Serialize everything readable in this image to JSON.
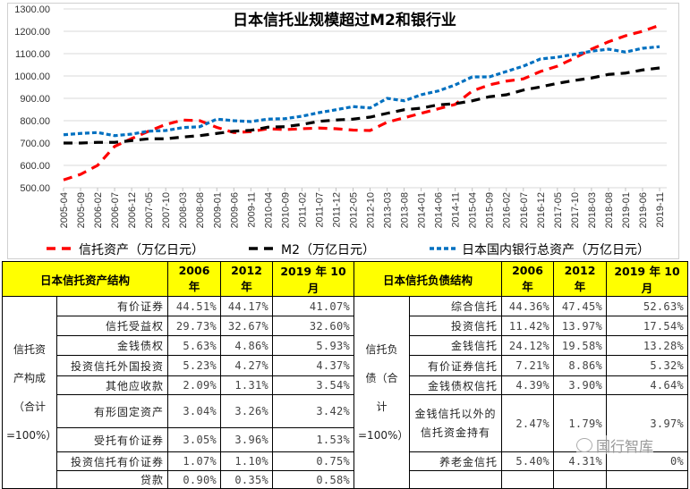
{
  "chart_data": {
    "type": "line",
    "title": "日本信托业规模超过M2和银行业",
    "xlabel": "",
    "ylabel": "",
    "ylim": [
      500,
      1300
    ],
    "yticks": [
      "500.00",
      "600.00",
      "700.00",
      "800.00",
      "900.00",
      "1000.00",
      "1100.00",
      "1200.00",
      "1300.00"
    ],
    "grid": true,
    "legend_position": "bottom",
    "x": [
      "2005-04",
      "2005-09",
      "2006-02",
      "2006-07",
      "2006-12",
      "2007-05",
      "2007-10",
      "2008-03",
      "2008-08",
      "2009-01",
      "2009-06",
      "2009-11",
      "2010-04",
      "2010-09",
      "2011-02",
      "2011-07",
      "2011-12",
      "2012-05",
      "2012-10",
      "2013-03",
      "2013-08",
      "2014-01",
      "2014-06",
      "2014-11",
      "2015-04",
      "2015-09",
      "2016-02",
      "2016-07",
      "2016-12",
      "2017-05",
      "2017-10",
      "2018-03",
      "2018-08",
      "2019-01",
      "2019-06",
      "2019-11"
    ],
    "series": [
      {
        "name": "信托资产（万亿日元）",
        "color": "#ff0000",
        "style": "dashed",
        "values": [
          535,
          560,
          600,
          685,
          720,
          753,
          783,
          803,
          800,
          770,
          747,
          751,
          764,
          760,
          764,
          767,
          764,
          758,
          756,
          793,
          813,
          833,
          853,
          873,
          933,
          960,
          977,
          987,
          1020,
          1044,
          1080,
          1120,
          1153,
          1180,
          1200,
          1227
        ]
      },
      {
        "name": "M2（万亿日元）",
        "color": "#000000",
        "style": "dashed",
        "values": [
          700,
          700,
          703,
          703,
          711,
          719,
          719,
          727,
          733,
          743,
          753,
          757,
          771,
          773,
          783,
          797,
          803,
          807,
          816,
          833,
          849,
          856,
          871,
          876,
          889,
          907,
          916,
          937,
          951,
          967,
          980,
          991,
          1007,
          1013,
          1027,
          1036
        ]
      },
      {
        "name": "日本国内银行总资产（万亿日元）",
        "color": "#0070c0",
        "style": "dotted",
        "values": [
          737,
          743,
          747,
          733,
          740,
          753,
          756,
          769,
          773,
          807,
          800,
          796,
          807,
          809,
          820,
          836,
          849,
          863,
          857,
          900,
          889,
          916,
          933,
          960,
          996,
          996,
          1020,
          1044,
          1076,
          1084,
          1097,
          1111,
          1120,
          1107,
          1124,
          1131
        ]
      }
    ]
  },
  "asset_table": {
    "headers": [
      "日本信托资产结构",
      "2006 年",
      "2012 年",
      "2019 年 10 月"
    ],
    "group_label": "信托资\n产构成\n（合计\n=100%）",
    "rows": [
      {
        "item": "有价证券",
        "v2006": "44.51%",
        "v2012": "44.17%",
        "v2019": "41.07%"
      },
      {
        "item": "信托受益权",
        "v2006": "29.73%",
        "v2012": "32.67%",
        "v2019": "32.60%"
      },
      {
        "item": "金钱债权",
        "v2006": "5.63%",
        "v2012": "4.86%",
        "v2019": "5.93%"
      },
      {
        "item": "投资信托外国投资",
        "v2006": "5.23%",
        "v2012": "4.27%",
        "v2019": "4.37%"
      },
      {
        "item": "其他应收款",
        "v2006": "2.09%",
        "v2012": "1.31%",
        "v2019": "3.54%"
      },
      {
        "item": "有形固定资产",
        "v2006": "3.04%",
        "v2012": "3.26%",
        "v2019": "3.42%"
      },
      {
        "item": "受托有价证券",
        "v2006": "3.05%",
        "v2012": "3.96%",
        "v2019": "1.53%"
      },
      {
        "item": "投资信托有价证券",
        "v2006": "1.07%",
        "v2012": "1.10%",
        "v2019": "0.75%"
      },
      {
        "item": "贷款",
        "v2006": "0.90%",
        "v2012": "0.35%",
        "v2019": "0.58%"
      }
    ]
  },
  "liability_table": {
    "headers": [
      "日本信托负债结构",
      "2006 年",
      "2012 年",
      "2019 年 10 月"
    ],
    "group_label": "信托负\n债（合\n计\n=100%）",
    "rows": [
      {
        "item": "综合信托",
        "v2006": "44.36%",
        "v2012": "47.45%",
        "v2019": "52.63%"
      },
      {
        "item": "投资信托",
        "v2006": "11.42%",
        "v2012": "13.97%",
        "v2019": "17.54%"
      },
      {
        "item": "金钱信托",
        "v2006": "24.12%",
        "v2012": "19.58%",
        "v2019": "13.28%"
      },
      {
        "item": "有价证券信托",
        "v2006": "7.21%",
        "v2012": "8.86%",
        "v2019": "5.32%"
      },
      {
        "item": "金钱债权信托",
        "v2006": "4.39%",
        "v2012": "3.90%",
        "v2019": "4.64%"
      },
      {
        "item": "金钱信托以外的信托资金持有",
        "v2006": "2.47%",
        "v2012": "1.79%",
        "v2019": "3.97%"
      },
      {
        "item": "养老金信托",
        "v2006": "5.40%",
        "v2012": "4.31%",
        "v2019": "0%"
      },
      {
        "item": "",
        "v2006": "",
        "v2012": "",
        "v2019": ""
      }
    ]
  },
  "watermark": {
    "text": "国行智库",
    "icon": "wechat-icon"
  }
}
